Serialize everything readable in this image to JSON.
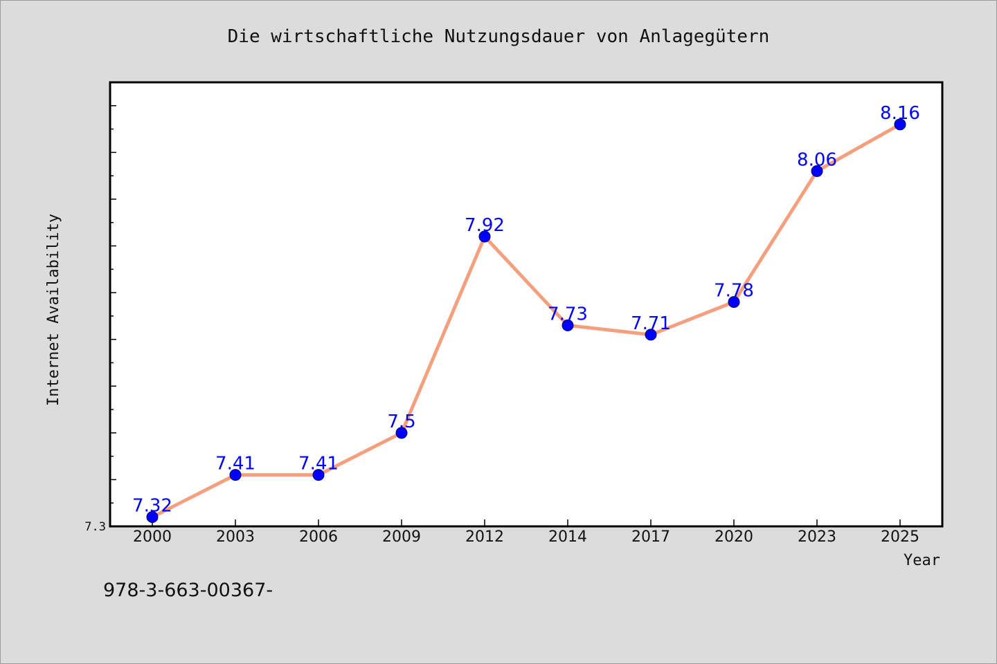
{
  "chart_data": {
    "type": "line",
    "title": "Die wirtschaftliche Nutzungsdauer von Anlagegütern",
    "xlabel": "Year",
    "ylabel": "Internet Availability",
    "categories": [
      "2000",
      "2003",
      "2006",
      "2009",
      "2012",
      "2014",
      "2017",
      "2020",
      "2023",
      "2025"
    ],
    "values": [
      7.32,
      7.41,
      7.41,
      7.5,
      7.92,
      7.73,
      7.71,
      7.78,
      8.06,
      8.16
    ],
    "data_labels": [
      "7.32",
      "7.41",
      "7.41",
      "7.5",
      "7.92",
      "7.73",
      "7.71",
      "7.78",
      "8.06",
      "8.16"
    ],
    "y_tick_label": "7.3",
    "ylim": [
      7.3,
      8.25
    ],
    "grid": false,
    "line_color": "#f4a07e",
    "marker_color": "#0000ff",
    "label_color": "#0000ff"
  },
  "footnote": "978-3-663-00367-"
}
